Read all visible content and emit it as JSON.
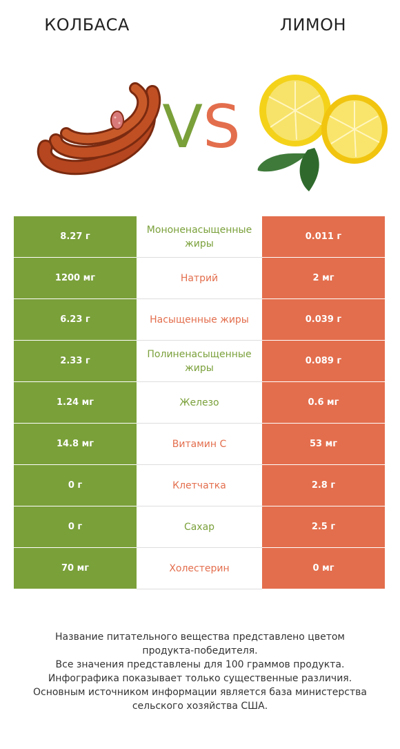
{
  "header": {
    "left_title": "КОЛБАСА",
    "right_title": "ЛИМОН",
    "vs_v": "V",
    "vs_s": "S"
  },
  "colors": {
    "winner_left": "#7aa03a",
    "winner_right": "#e36e4d"
  },
  "rows": [
    {
      "left": "8.27 г",
      "nutrient": "Мононенасыщенные жиры",
      "right": "0.011 г",
      "winner": "left"
    },
    {
      "left": "1200 мг",
      "nutrient": "Натрий",
      "right": "2 мг",
      "winner": "right"
    },
    {
      "left": "6.23 г",
      "nutrient": "Насыщенные жиры",
      "right": "0.039 г",
      "winner": "right"
    },
    {
      "left": "2.33 г",
      "nutrient": "Полиненасыщенные жиры",
      "right": "0.089 г",
      "winner": "left"
    },
    {
      "left": "1.24 мг",
      "nutrient": "Железо",
      "right": "0.6 мг",
      "winner": "left"
    },
    {
      "left": "14.8 мг",
      "nutrient": "Витамин C",
      "right": "53 мг",
      "winner": "right"
    },
    {
      "left": "0 г",
      "nutrient": "Клетчатка",
      "right": "2.8 г",
      "winner": "right"
    },
    {
      "left": "0 г",
      "nutrient": "Сахар",
      "right": "2.5 г",
      "winner": "left"
    },
    {
      "left": "70 мг",
      "nutrient": "Холестерин",
      "right": "0 мг",
      "winner": "right"
    }
  ],
  "footer": {
    "line1": "Название питательного вещества представлено цветом",
    "line2": "продукта-победителя.",
    "line3": "Все значения представлены для 100 граммов продукта.",
    "line4": "Инфографика показывает только существенные различия.",
    "line5": "Основным источником информации является база министерства",
    "line6": "сельского хозяйства США."
  }
}
